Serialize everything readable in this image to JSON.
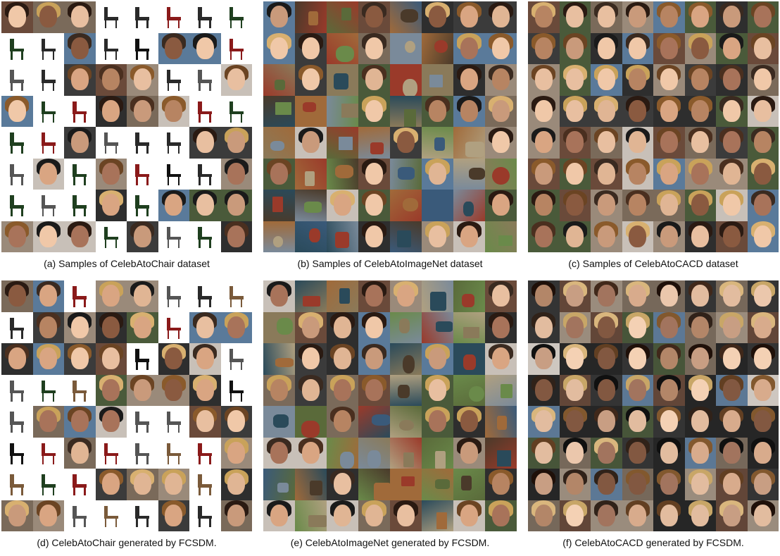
{
  "panels": [
    {
      "id": "a",
      "caption": "(a) Samples of CelebAtoChair dataset",
      "kind": "face-chair"
    },
    {
      "id": "b",
      "caption": "(b) Samples of CelebAtoImageNet dataset",
      "kind": "face-imagenet"
    },
    {
      "id": "c",
      "caption": "(c) Samples of CelebAtoCACD dataset",
      "kind": "face-face"
    },
    {
      "id": "d",
      "caption": "(d) CelebAtoChair generated by FCSDM.",
      "kind": "face-chair"
    },
    {
      "id": "e",
      "caption": "(e) CelebAtoImageNet generated by FCSDM.",
      "kind": "face-imagenet"
    },
    {
      "id": "f",
      "caption": "(f) CelebAtoCACD generated by FCSDM.",
      "kind": "face-face-gen"
    }
  ],
  "palette": {
    "skin": [
      "#c99a7b",
      "#e0b594",
      "#a8735a",
      "#f0c8a8",
      "#8a5a40",
      "#d9a582",
      "#b78462",
      "#e8bfa0"
    ],
    "hair": [
      "#2a1a12",
      "#6b4423",
      "#c9a25a",
      "#1a1a1a",
      "#8a5a2b",
      "#3a2a20",
      "#d8b070",
      "#4a2f1f"
    ],
    "bg": [
      "#3b3b3b",
      "#7a6a5a",
      "#5a7a9a",
      "#2e2e2e",
      "#9a8a7a",
      "#c8c0b8",
      "#4a5a3a",
      "#6a4a3a"
    ],
    "chair": [
      "#111111",
      "#2a2a2a",
      "#555555",
      "#7a5a3a",
      "#8a1a1a",
      "#1f3f1f"
    ],
    "imagenet": [
      "#5a6a3a",
      "#8a7a5a",
      "#3a5a7a",
      "#a06a3a",
      "#7a8a9a",
      "#4a3a2a",
      "#b0a080",
      "#2a4a5a",
      "#9a3a2a",
      "#6a8a4a"
    ]
  }
}
